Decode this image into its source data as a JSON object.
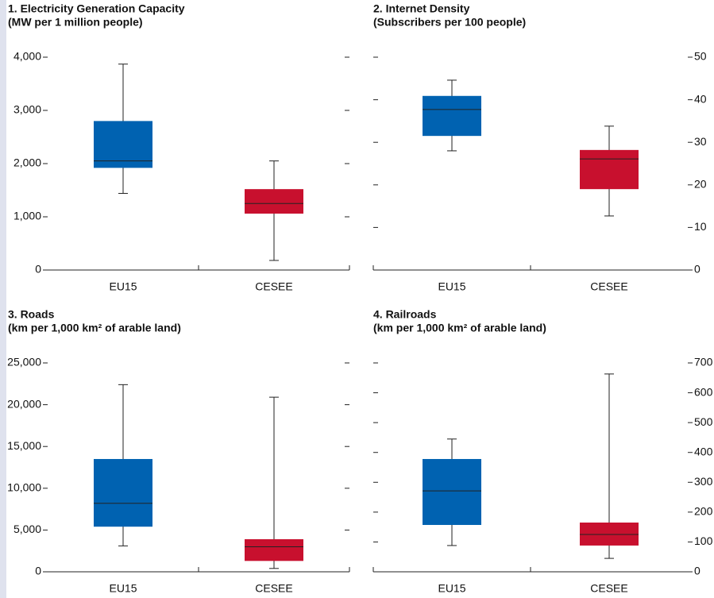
{
  "chart_data": [
    {
      "type": "box",
      "title": "1. Electricity Generation Capacity",
      "subtitle": "(MW per 1 million people)",
      "categories": [
        "EU15",
        "CESEE"
      ],
      "colors": [
        "#0062b1",
        "#c8102e"
      ],
      "values": [
        [
          1440,
          1920,
          2050,
          2800,
          3870
        ],
        [
          180,
          1060,
          1250,
          1520,
          2050
        ]
      ],
      "ylim": [
        0,
        4000
      ],
      "yticks": [
        0,
        {
          "value": 1000,
          "label": "1,000"
        },
        {
          "value": 2000,
          "label": "2,000"
        },
        {
          "value": 3000,
          "label": "3,000"
        },
        {
          "value": 4000,
          "label": "4,000"
        }
      ],
      "axis_side": "left"
    },
    {
      "type": "box",
      "title": "2. Internet Density",
      "subtitle": "(Subscribers per 100 people)",
      "categories": [
        "EU15",
        "CESEE"
      ],
      "colors": [
        "#0062b1",
        "#c8102e"
      ],
      "values": [
        [
          28.0,
          31.5,
          37.7,
          40.9,
          44.6
        ],
        [
          12.7,
          19.0,
          26.1,
          28.2,
          33.8
        ]
      ],
      "ylim": [
        0,
        50
      ],
      "yticks": [
        0,
        10,
        20,
        30,
        40,
        50
      ],
      "axis_side": "right"
    },
    {
      "type": "box",
      "title": "3. Roads",
      "subtitle": "(km per 1,000 km² of arable land)",
      "categories": [
        "EU15",
        "CESEE"
      ],
      "colors": [
        "#0062b1",
        "#c8102e"
      ],
      "values": [
        [
          3100,
          5400,
          8200,
          13500,
          22400
        ],
        [
          400,
          1300,
          3000,
          3900,
          20900
        ]
      ],
      "ylim": [
        0,
        25000
      ],
      "yticks": [
        0,
        {
          "value": 5000,
          "label": "5,000"
        },
        {
          "value": 10000,
          "label": "10,000"
        },
        {
          "value": 15000,
          "label": "15,000"
        },
        {
          "value": 20000,
          "label": "20,000"
        },
        {
          "value": 25000,
          "label": "25,000"
        }
      ],
      "axis_side": "left"
    },
    {
      "type": "box",
      "title": "4. Railroads",
      "subtitle": "(km per 1,000 km² of arable land)",
      "categories": [
        "EU15",
        "CESEE"
      ],
      "colors": [
        "#0062b1",
        "#c8102e"
      ],
      "values": [
        [
          88,
          157,
          271,
          378,
          445
        ],
        [
          45,
          88,
          125,
          165,
          663
        ]
      ],
      "ylim": [
        0,
        700
      ],
      "yticks": [
        0,
        100,
        200,
        300,
        400,
        500,
        600,
        700
      ],
      "axis_side": "right"
    }
  ]
}
